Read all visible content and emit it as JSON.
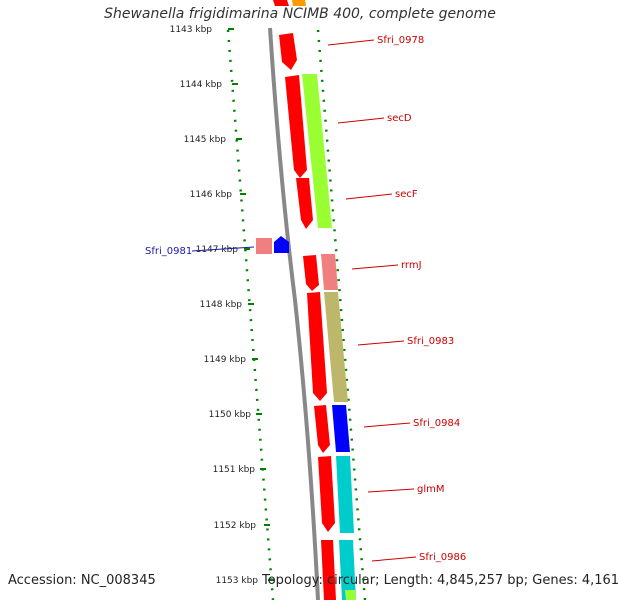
{
  "title": "Shewanella frigidimarina NCIMB 400, complete genome",
  "footer": {
    "accession": "Accession: NC_008345",
    "summary": "Topology: circular; Length: 4,845,257 bp; Genes: 4,161"
  },
  "ticks": [
    "1143 kbp",
    "1144 kbp",
    "1145 kbp",
    "1146 kbp",
    "1147 kbp",
    "1148 kbp",
    "1149 kbp",
    "1150 kbp",
    "1151 kbp",
    "1152 kbp",
    "1153 kbp"
  ],
  "gene_labels": [
    {
      "text": "Sfri_0978",
      "color": "red"
    },
    {
      "text": "secD",
      "color": "red"
    },
    {
      "text": "secF",
      "color": "red"
    },
    {
      "text": "Sfri_0981",
      "color": "blue"
    },
    {
      "text": "rrmJ",
      "color": "red"
    },
    {
      "text": "Sfri_0983",
      "color": "red"
    },
    {
      "text": "Sfri_0984",
      "color": "red"
    },
    {
      "text": "glmM",
      "color": "red"
    },
    {
      "text": "Sfri_0986",
      "color": "red"
    }
  ],
  "colors": {
    "gene_red": "#ff0000",
    "secD_green": "#99ff33",
    "rrmJ_pink": "#f08080",
    "Sfri_0983_tan": "#bdb76b",
    "Sfri_0984_blue": "#0000ff",
    "glmM_cyan": "#00cccc",
    "Sfri_0981_blue": "#0000ff",
    "orange": "#ff9900",
    "backbone": "#888888",
    "dotted_green": "#008000"
  }
}
